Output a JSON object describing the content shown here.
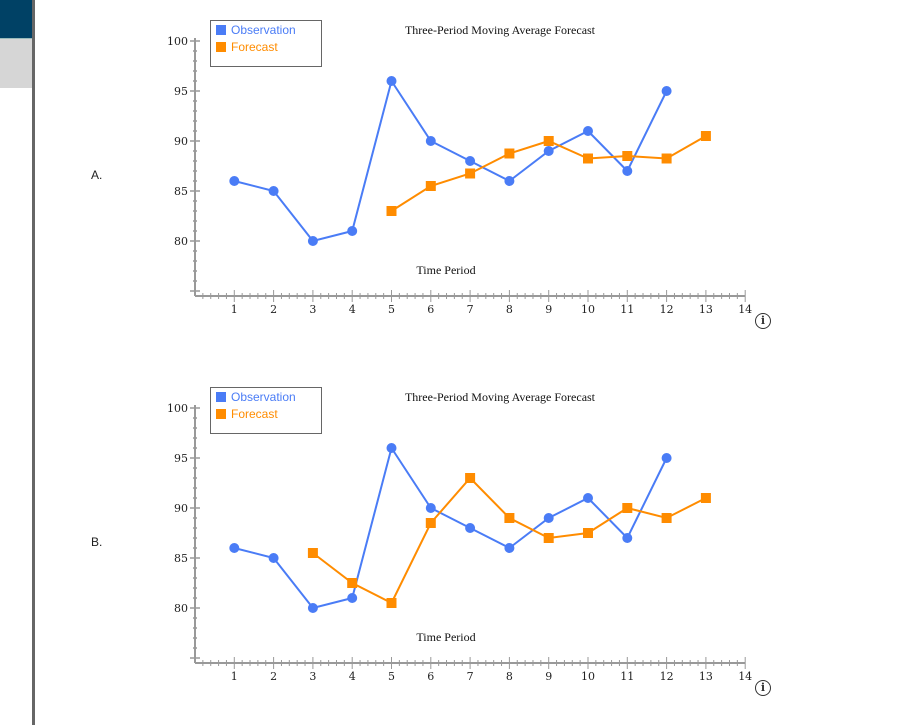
{
  "options": [
    {
      "label": "A.",
      "chart_index": 0
    },
    {
      "label": "B.",
      "chart_index": 1
    }
  ],
  "colors": {
    "observation": "#4a7cf6",
    "forecast": "#ff8c00",
    "axis": "#999999"
  },
  "chart_data": [
    {
      "type": "line",
      "title": "Three-Period Moving Average Forecast",
      "xlabel": "Time Period",
      "ylabel": "",
      "xlim": [
        0,
        14
      ],
      "ylim": [
        74.5,
        100
      ],
      "xticks": [
        1,
        2,
        3,
        4,
        5,
        6,
        7,
        8,
        9,
        10,
        11,
        12,
        13,
        14
      ],
      "yticks": [
        80,
        85,
        90,
        95,
        100
      ],
      "legend": "top-left",
      "series": [
        {
          "name": "Observation",
          "marker": "circle",
          "x": [
            1,
            2,
            3,
            4,
            5,
            6,
            7,
            8,
            9,
            10,
            11,
            12
          ],
          "values": [
            86,
            85,
            80,
            81,
            96,
            90,
            88,
            86,
            89,
            91,
            87,
            95
          ]
        },
        {
          "name": "Forecast",
          "marker": "square",
          "x": [
            5,
            6,
            7,
            8,
            9,
            10,
            11,
            12,
            13
          ],
          "values": [
            83,
            85.5,
            86.75,
            88.75,
            90,
            88.25,
            88.5,
            88.25,
            90.5
          ]
        }
      ]
    },
    {
      "type": "line",
      "title": "Three-Period Moving Average Forecast",
      "xlabel": "Time Period",
      "ylabel": "",
      "xlim": [
        0,
        14
      ],
      "ylim": [
        74.5,
        100
      ],
      "xticks": [
        1,
        2,
        3,
        4,
        5,
        6,
        7,
        8,
        9,
        10,
        11,
        12,
        13,
        14
      ],
      "yticks": [
        80,
        85,
        90,
        95,
        100
      ],
      "legend": "top-left",
      "series": [
        {
          "name": "Observation",
          "marker": "circle",
          "x": [
            1,
            2,
            3,
            4,
            5,
            6,
            7,
            8,
            9,
            10,
            11,
            12
          ],
          "values": [
            86,
            85,
            80,
            81,
            96,
            90,
            88,
            86,
            89,
            91,
            87,
            95
          ]
        },
        {
          "name": "Forecast",
          "marker": "square",
          "x": [
            3,
            4,
            5,
            6,
            7,
            8,
            9,
            10,
            11,
            12,
            13
          ],
          "values": [
            85.5,
            82.5,
            80.5,
            88.5,
            93,
            89,
            87,
            87.5,
            90,
            89,
            91
          ]
        }
      ]
    }
  ],
  "info_icon": "info-icon"
}
